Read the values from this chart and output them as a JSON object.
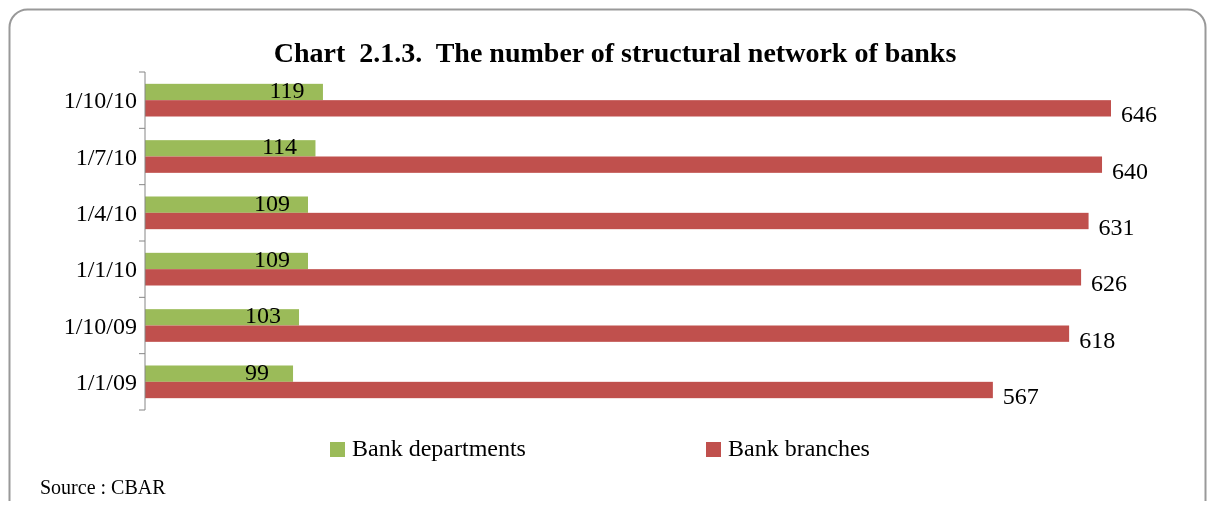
{
  "chart_data": {
    "type": "bar",
    "orientation": "horizontal",
    "title": "Chart  2.1.3.  The number of structural network of banks",
    "categories": [
      "1/10/10",
      "1/7/10",
      "1/4/10",
      "1/1/10",
      "1/10/09",
      "1/1/09"
    ],
    "series": [
      {
        "name": "Bank departments",
        "color": "#9bbb59",
        "values": [
          119,
          114,
          109,
          109,
          103,
          99
        ]
      },
      {
        "name": "Bank branches",
        "color": "#c0504d",
        "values": [
          646,
          640,
          631,
          626,
          618,
          567
        ]
      }
    ],
    "data_labels": true,
    "legend": "bottom",
    "annotations": [
      "Source : CBAR"
    ]
  }
}
